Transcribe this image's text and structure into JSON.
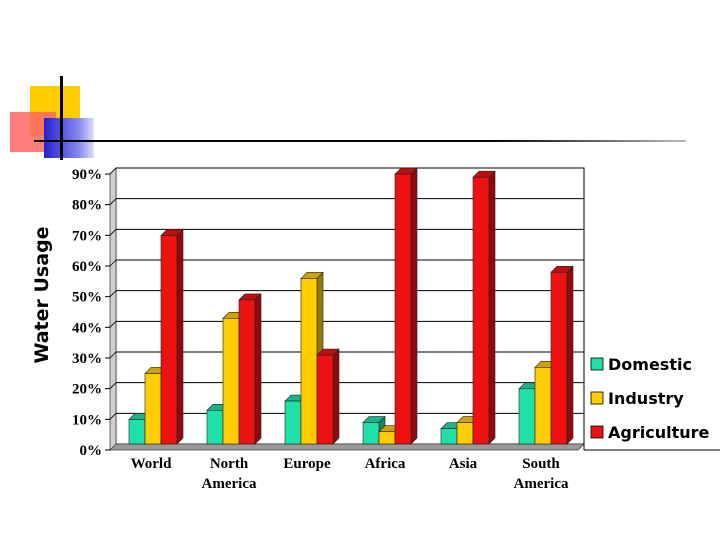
{
  "colors": {
    "domestic": "#1ee0a8",
    "industry": "#ffcc00",
    "agriculture": "#ee1111",
    "deco_yellow": "#ffcc00",
    "deco_red": "#ff6666",
    "deco_blue": "#3333cc"
  },
  "chart_data": {
    "type": "bar",
    "title": "",
    "xlabel": "",
    "ylabel": "Water Usage",
    "categories": [
      [
        "World"
      ],
      [
        "North",
        "America"
      ],
      [
        "Europe"
      ],
      [
        "Africa"
      ],
      [
        "Asia"
      ],
      [
        "South",
        "America"
      ]
    ],
    "series": [
      {
        "name": "Domestic",
        "color_key": "domestic",
        "values": [
          8,
          11,
          14,
          7,
          5,
          18
        ]
      },
      {
        "name": "Industry",
        "color_key": "industry",
        "values": [
          23,
          41,
          54,
          4,
          7,
          25
        ]
      },
      {
        "name": "Agriculture",
        "color_key": "agriculture",
        "values": [
          68,
          47,
          29,
          88,
          87,
          56
        ]
      }
    ],
    "ylim": [
      0,
      90
    ],
    "yticks": [
      0,
      10,
      20,
      30,
      40,
      50,
      60,
      70,
      80,
      90
    ],
    "ytick_labels": [
      "0%",
      "10%",
      "20%",
      "30%",
      "40%",
      "50%",
      "60%",
      "70%",
      "80%",
      "90%"
    ],
    "grid": true,
    "style": "3d",
    "legend_position": "right"
  }
}
